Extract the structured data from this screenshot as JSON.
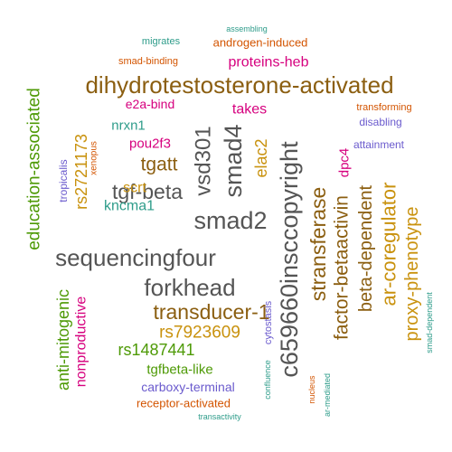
{
  "chart_data": {
    "type": "wordcloud",
    "title": "",
    "words": [
      {
        "text": "dihydrotestosterone-activated",
        "color": "#8B5E10"
      },
      {
        "text": "c659660insccopyright",
        "color": "#555555"
      },
      {
        "text": "sequencingfour",
        "color": "#555555"
      },
      {
        "text": "smad2",
        "color": "#555555"
      },
      {
        "text": "smad4",
        "color": "#555555"
      },
      {
        "text": "vsd301",
        "color": "#555555"
      },
      {
        "text": "forkhead",
        "color": "#555555"
      },
      {
        "text": "tgf-beta",
        "color": "#555555"
      },
      {
        "text": "transducer-1",
        "color": "#8B5E10"
      },
      {
        "text": "stransferase",
        "color": "#8B5E10"
      },
      {
        "text": "education-associated",
        "color": "#4E9A06"
      },
      {
        "text": "ar-coregulator",
        "color": "#C9920E"
      },
      {
        "text": "factor-betaactivin",
        "color": "#8B5E10"
      },
      {
        "text": "beta-dependent",
        "color": "#8B5E10"
      },
      {
        "text": "proxy-phenotype",
        "color": "#C9920E"
      },
      {
        "text": "tgatt",
        "color": "#8B5E10"
      },
      {
        "text": "rs7923609",
        "color": "#C9920E"
      },
      {
        "text": "rs2721173",
        "color": "#C9920E"
      },
      {
        "text": "elac2",
        "color": "#C9920E"
      },
      {
        "text": "anti-mitogenic",
        "color": "#4E9A06"
      },
      {
        "text": "rs1487441",
        "color": "#4E9A06"
      },
      {
        "text": "proteins-heb",
        "color": "#D6007E"
      },
      {
        "text": "nonproductive",
        "color": "#D6007E"
      },
      {
        "text": "tgfbeta-like",
        "color": "#4E9A06"
      },
      {
        "text": "carboxy-terminal",
        "color": "#6A5ACD"
      },
      {
        "text": "kncma1",
        "color": "#2E9C8A"
      },
      {
        "text": "dpc4",
        "color": "#D6007E"
      },
      {
        "text": "takes",
        "color": "#D6007E"
      },
      {
        "text": "pou2f3",
        "color": "#D6007E"
      },
      {
        "text": "e2a-bind",
        "color": "#D6007E"
      },
      {
        "text": "scrt",
        "color": "#C9920E"
      },
      {
        "text": "nrxn1",
        "color": "#2E9C8A"
      },
      {
        "text": "androgen-induced",
        "color": "#D35400"
      },
      {
        "text": "receptor-activated",
        "color": "#D35400"
      },
      {
        "text": "attainment",
        "color": "#6A5ACD"
      },
      {
        "text": "disabling",
        "color": "#6A5ACD"
      },
      {
        "text": "transforming",
        "color": "#D35400"
      },
      {
        "text": "smad-binding",
        "color": "#D35400"
      },
      {
        "text": "migrates",
        "color": "#2E9C8A"
      },
      {
        "text": "tropicalis",
        "color": "#6A5ACD"
      },
      {
        "text": "cytostasis",
        "color": "#6A5ACD"
      },
      {
        "text": "xenopus",
        "color": "#D35400"
      },
      {
        "text": "confluence",
        "color": "#2E9C8A"
      },
      {
        "text": "nucleus",
        "color": "#D35400"
      },
      {
        "text": "ar-mediated",
        "color": "#2E9C8A"
      },
      {
        "text": "smad-dependent",
        "color": "#2E9C8A"
      },
      {
        "text": "assembling",
        "color": "#2E9C8A"
      },
      {
        "text": "transactivity",
        "color": "#2E9C8A"
      }
    ]
  }
}
